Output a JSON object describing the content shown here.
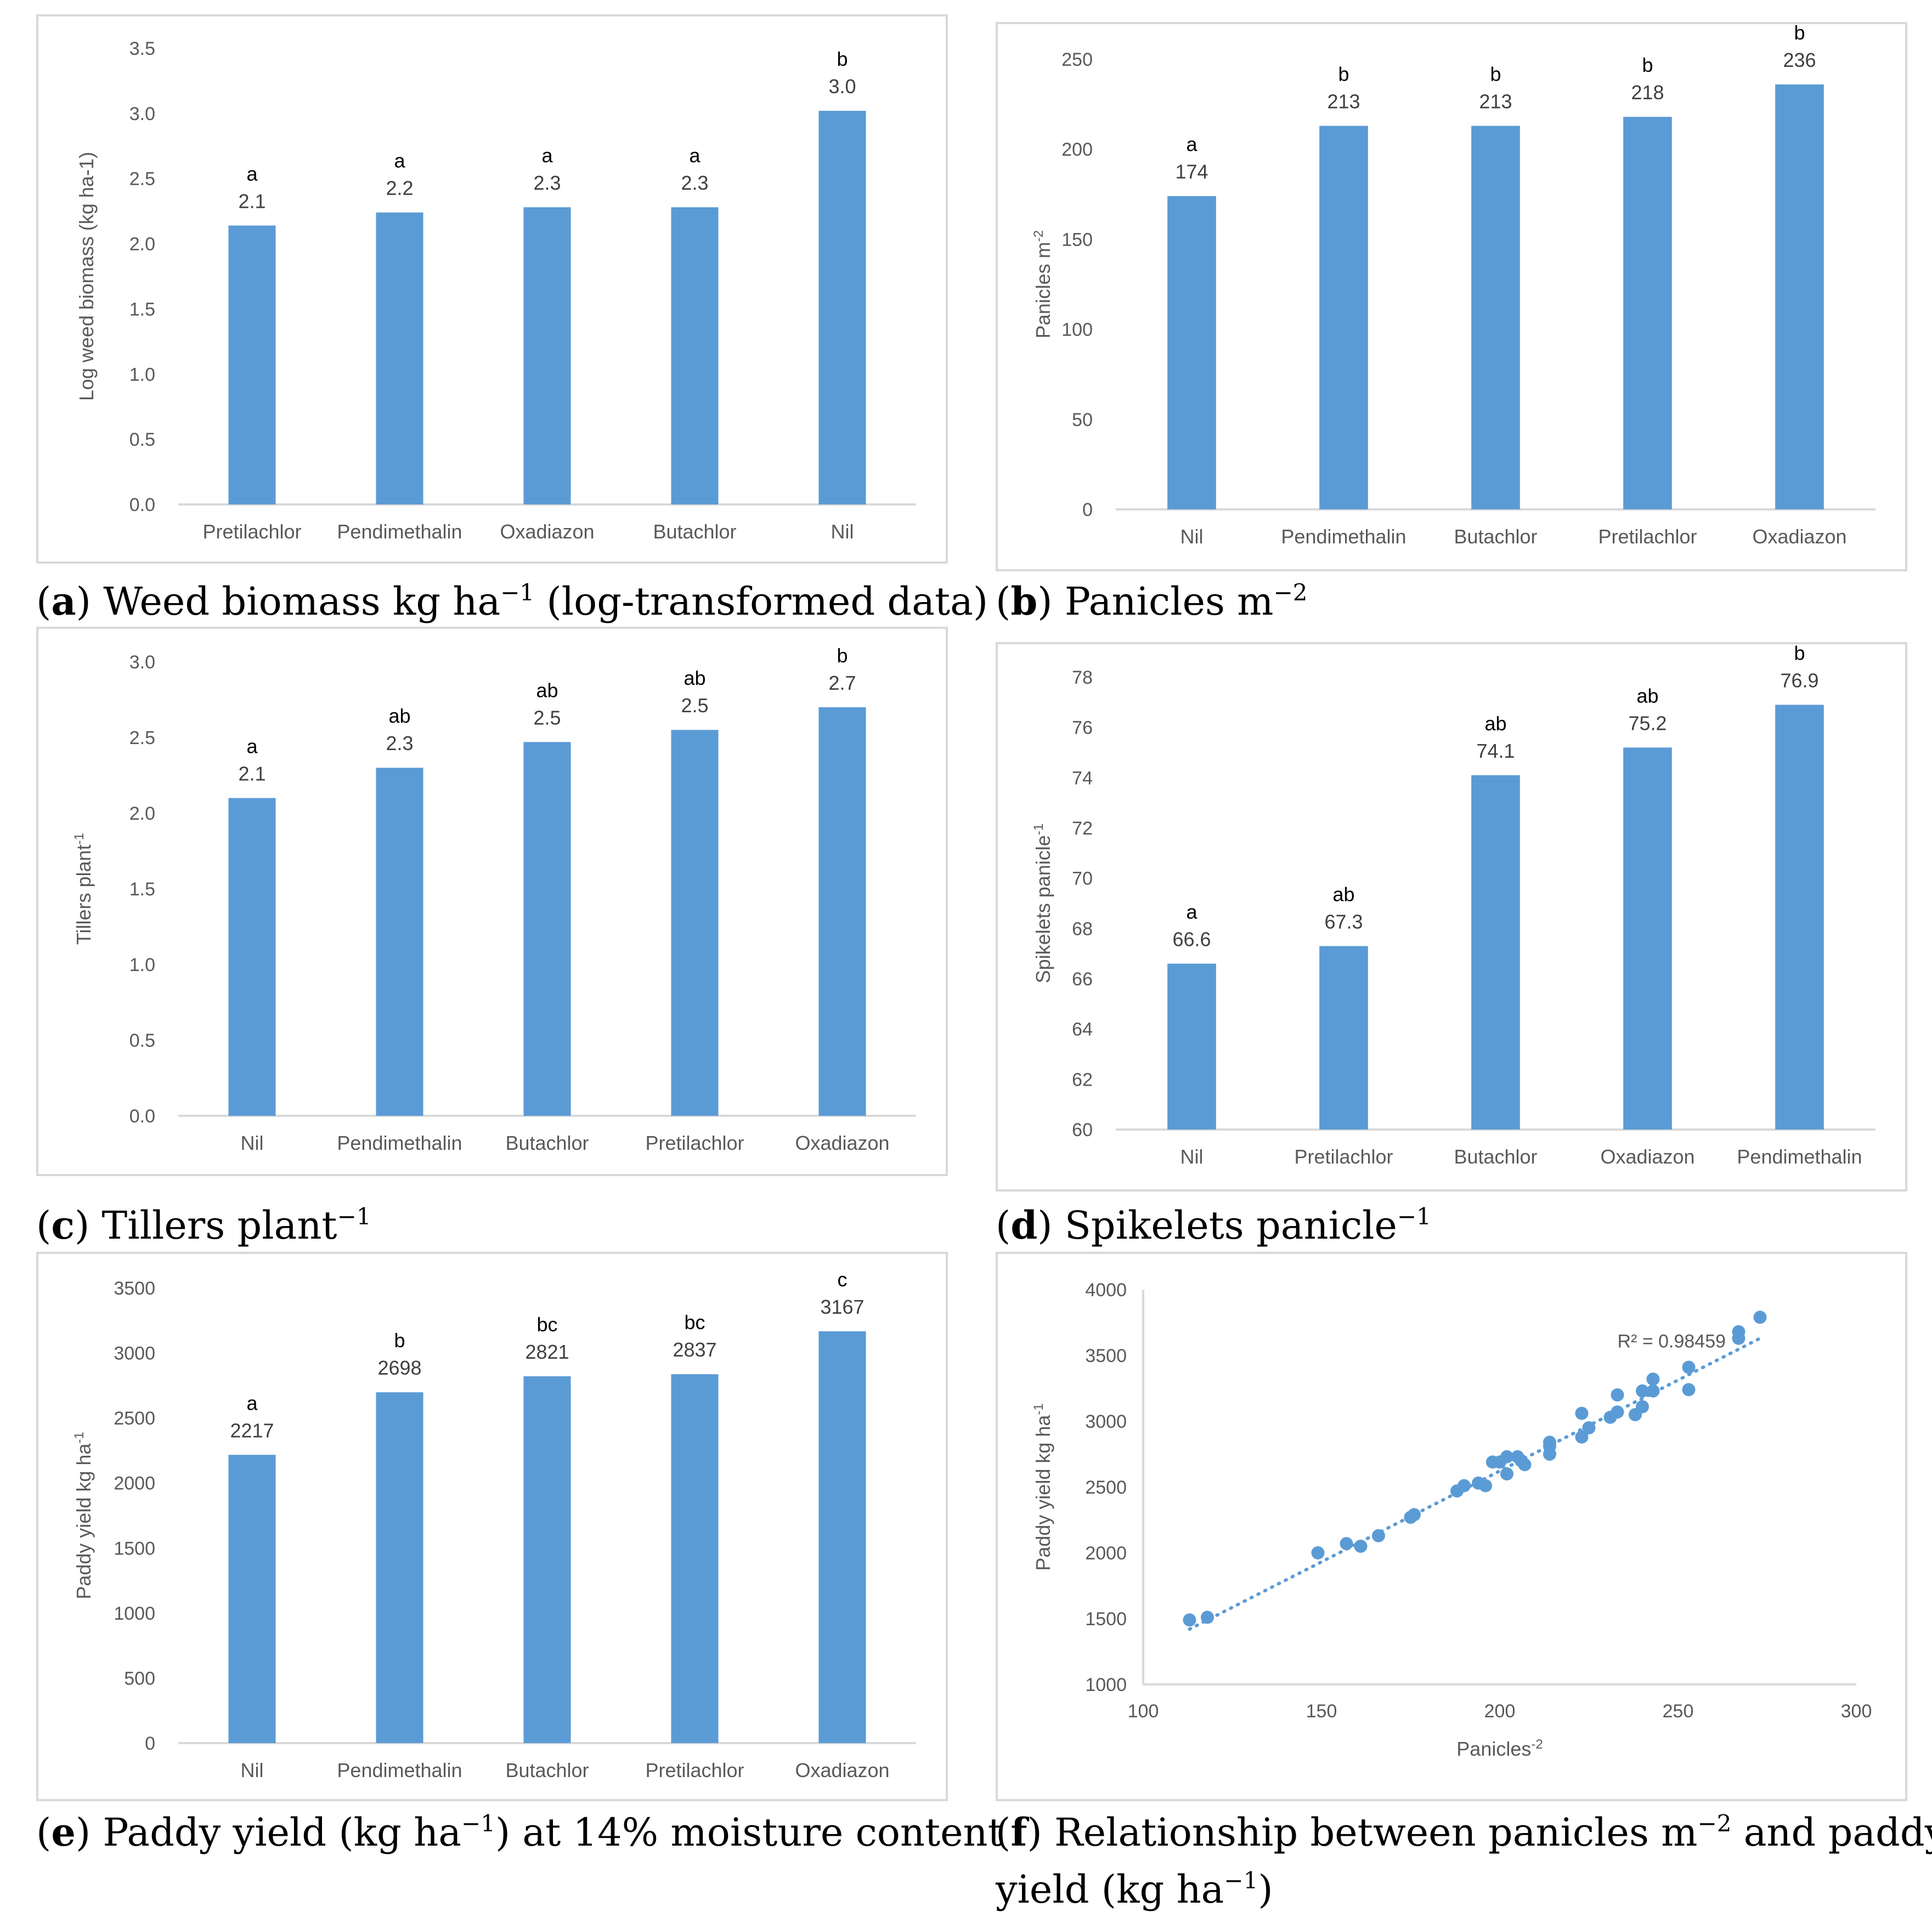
{
  "colors": {
    "bar": "#5b9bd5",
    "axis": "#d9d9d9",
    "text": "#595959",
    "point": "#5b9bd5"
  },
  "captions": {
    "a": {
      "letter": "a",
      "text": " Weed biomass kg ha",
      "sup": "−1",
      "tail": " (log-transformed data)"
    },
    "b": {
      "letter": "b",
      "text": " Panicles m",
      "sup": "−2",
      "tail": ""
    },
    "c": {
      "letter": "c",
      "text": " Tillers plant",
      "sup": "−1",
      "tail": ""
    },
    "d": {
      "letter": "d",
      "text": " Spikelets panicle",
      "sup": "−1",
      "tail": ""
    },
    "e": {
      "letter": "e",
      "text": " Paddy yield (kg ha",
      "sup": "−1",
      "tail": ") at 14% moisture content"
    },
    "f": {
      "letter": "f",
      "text": " Relationship between panicles m",
      "sup": "−2",
      "tail": " and paddy",
      "line2": "yield (kg ha",
      "sup2": "−1",
      "tail2": ")"
    }
  },
  "chart_data": [
    {
      "id": "a",
      "type": "bar",
      "ylabel": "Log weed biomass (kg ha-1)",
      "categories": [
        "Pretilachlor",
        "Pendimethalin",
        "Oxadiazon",
        "Butachlor",
        "Nil"
      ],
      "values": [
        2.14,
        2.24,
        2.28,
        2.28,
        3.02
      ],
      "value_labels": [
        "2.1",
        "2.2",
        "2.3",
        "2.3",
        "3.0"
      ],
      "letters": [
        "a",
        "a",
        "a",
        "a",
        "b"
      ],
      "ylim": [
        0,
        3.5
      ],
      "yticks": [
        "0.0",
        "0.5",
        "1.0",
        "1.5",
        "2.0",
        "2.5",
        "3.0",
        "3.5"
      ]
    },
    {
      "id": "b",
      "type": "bar",
      "ylabel": "Panicles m-2",
      "categories": [
        "Nil",
        "Pendimethalin",
        "Butachlor",
        "Pretilachlor",
        "Oxadiazon"
      ],
      "values": [
        174,
        213,
        213,
        218,
        236
      ],
      "value_labels": [
        "174",
        "213",
        "213",
        "218",
        "236"
      ],
      "letters": [
        "a",
        "b",
        "b",
        "b",
        "b"
      ],
      "ylim": [
        0,
        250
      ],
      "yticks": [
        "0",
        "50",
        "100",
        "150",
        "200",
        "250"
      ]
    },
    {
      "id": "c",
      "type": "bar",
      "ylabel": "Tillers plant-1",
      "categories": [
        "Nil",
        "Pendimethalin",
        "Butachlor",
        "Pretilachlor",
        "Oxadiazon"
      ],
      "values": [
        2.1,
        2.3,
        2.47,
        2.55,
        2.7
      ],
      "value_labels": [
        "2.1",
        "2.3",
        "2.5",
        "2.5",
        "2.7"
      ],
      "letters": [
        "a",
        "ab",
        "ab",
        "ab",
        "b"
      ],
      "ylim": [
        0,
        3.0
      ],
      "yticks": [
        "0.0",
        "0.5",
        "1.0",
        "1.5",
        "2.0",
        "2.5",
        "3.0"
      ]
    },
    {
      "id": "d",
      "type": "bar",
      "ylabel": "Spikelets panicle-1",
      "categories": [
        "Nil",
        "Pretilachlor",
        "Butachlor",
        "Oxadiazon",
        "Pendimethalin"
      ],
      "values": [
        66.6,
        67.3,
        74.1,
        75.2,
        76.9
      ],
      "value_labels": [
        "66.6",
        "67.3",
        "74.1",
        "75.2",
        "76.9"
      ],
      "letters": [
        "a",
        "ab",
        "ab",
        "ab",
        "b"
      ],
      "ylim": [
        60,
        78
      ],
      "yticks": [
        "60",
        "62",
        "64",
        "66",
        "68",
        "70",
        "72",
        "74",
        "76",
        "78"
      ]
    },
    {
      "id": "e",
      "type": "bar",
      "ylabel": "Paddy yield kg ha-1",
      "categories": [
        "Nil",
        "Pendimethalin",
        "Butachlor",
        "Pretilachlor",
        "Oxadiazon"
      ],
      "values": [
        2217,
        2698,
        2821,
        2837,
        3167
      ],
      "value_labels": [
        "2217",
        "2698",
        "2821",
        "2837",
        "3167"
      ],
      "letters": [
        "a",
        "b",
        "bc",
        "bc",
        "c"
      ],
      "ylim": [
        0,
        3500
      ],
      "yticks": [
        "0",
        "500",
        "1000",
        "1500",
        "2000",
        "2500",
        "3000",
        "3500"
      ]
    },
    {
      "id": "f",
      "type": "scatter",
      "xlabel": "Panicles-2",
      "ylabel": "Paddy yield kg ha-1",
      "annotation": "R² = 0.98459",
      "xlim": [
        100,
        300
      ],
      "ylim": [
        1000,
        4000
      ],
      "xticks": [
        "100",
        "150",
        "200",
        "250",
        "300"
      ],
      "yticks": [
        "1000",
        "1500",
        "2000",
        "2500",
        "3000",
        "3500",
        "4000"
      ],
      "trendline": {
        "x": [
          113,
          273
        ],
        "y": [
          1420,
          3630
        ]
      },
      "points": [
        [
          113,
          1490
        ],
        [
          118,
          1510
        ],
        [
          149,
          2000
        ],
        [
          157,
          2070
        ],
        [
          161,
          2050
        ],
        [
          166,
          2130
        ],
        [
          175,
          2270
        ],
        [
          176,
          2290
        ],
        [
          188,
          2470
        ],
        [
          190,
          2510
        ],
        [
          194,
          2530
        ],
        [
          196,
          2510
        ],
        [
          198,
          2690
        ],
        [
          200,
          2690
        ],
        [
          202,
          2730
        ],
        [
          202,
          2600
        ],
        [
          205,
          2730
        ],
        [
          206,
          2700
        ],
        [
          207,
          2670
        ],
        [
          214,
          2840
        ],
        [
          214,
          2750
        ],
        [
          214,
          2810
        ],
        [
          223,
          2880
        ],
        [
          223,
          3060
        ],
        [
          225,
          2950
        ],
        [
          231,
          3030
        ],
        [
          233,
          3070
        ],
        [
          233,
          3200
        ],
        [
          238,
          3050
        ],
        [
          240,
          3230
        ],
        [
          240,
          3110
        ],
        [
          243,
          3230
        ],
        [
          243,
          3320
        ],
        [
          253,
          3410
        ],
        [
          253,
          3240
        ],
        [
          267,
          3630
        ],
        [
          267,
          3680
        ],
        [
          273,
          3790
        ]
      ]
    }
  ]
}
